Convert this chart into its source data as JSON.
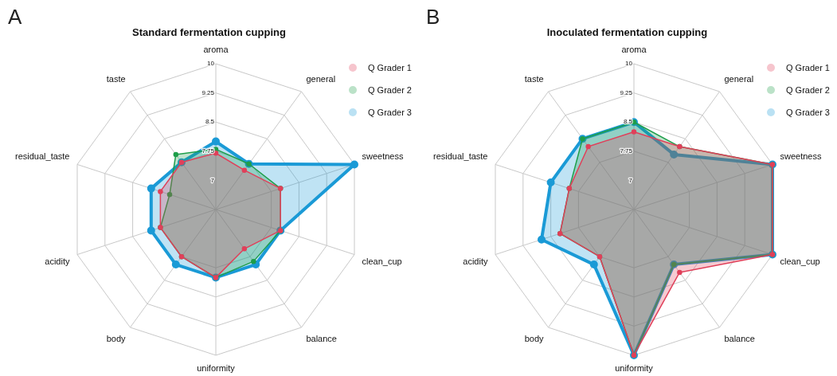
{
  "chart_data": [
    {
      "type": "radar",
      "title": "Standard fermentation cupping",
      "annotations": [
        "A"
      ],
      "categories": [
        "aroma",
        "general",
        "sweetness",
        "clean_cup",
        "balance",
        "uniformity",
        "body",
        "acidity",
        "residual_taste",
        "taste"
      ],
      "series": [
        {
          "name": "Q Grader 1",
          "color": "#e0405a",
          "values": [
            7.7,
            7.5,
            8,
            8,
            7.5,
            8,
            7.75,
            7.75,
            7.75,
            7.75
          ]
        },
        {
          "name": "Q Grader 2",
          "color": "#1e9e4a",
          "values": [
            7.8,
            7.7,
            8,
            8,
            7.9,
            8,
            7.75,
            7.75,
            7.5,
            8
          ]
        },
        {
          "name": "Q Grader 3",
          "color": "#1a9ad6",
          "values": [
            8,
            7.7,
            10,
            8,
            8,
            8,
            8,
            8,
            8,
            7.75
          ]
        }
      ],
      "ylim": [
        6.25,
        10
      ],
      "yticks": [
        7,
        7.75,
        8.5,
        9.25,
        10
      ],
      "legend": "top right",
      "marker": "circle",
      "grid": true
    },
    {
      "type": "radar",
      "title": "Inoculated fermentation cupping",
      "annotations": [
        "B"
      ],
      "categories": [
        "aroma",
        "general",
        "sweetness",
        "clean_cup",
        "balance",
        "uniformity",
        "body",
        "acidity",
        "residual_taste",
        "taste"
      ],
      "series": [
        {
          "name": "Q Grader 1",
          "color": "#e0405a",
          "values": [
            8.25,
            8.25,
            10,
            10,
            8.25,
            10,
            7.75,
            8.25,
            8,
            8.25
          ]
        },
        {
          "name": "Q Grader 2",
          "color": "#1e9e4a",
          "values": [
            8.5,
            8.25,
            10,
            10,
            8,
            10,
            7.75,
            8.25,
            8,
            8.5
          ]
        },
        {
          "name": "Q Grader 3",
          "color": "#1a9ad6",
          "values": [
            8.5,
            8,
            10,
            10,
            8,
            10,
            8,
            8.75,
            8.5,
            8.5
          ]
        }
      ],
      "ylim": [
        6.25,
        10
      ],
      "yticks": [
        7,
        7.75,
        8.5,
        9.25,
        10
      ],
      "legend": "top right",
      "marker": "circle",
      "grid": true
    }
  ]
}
